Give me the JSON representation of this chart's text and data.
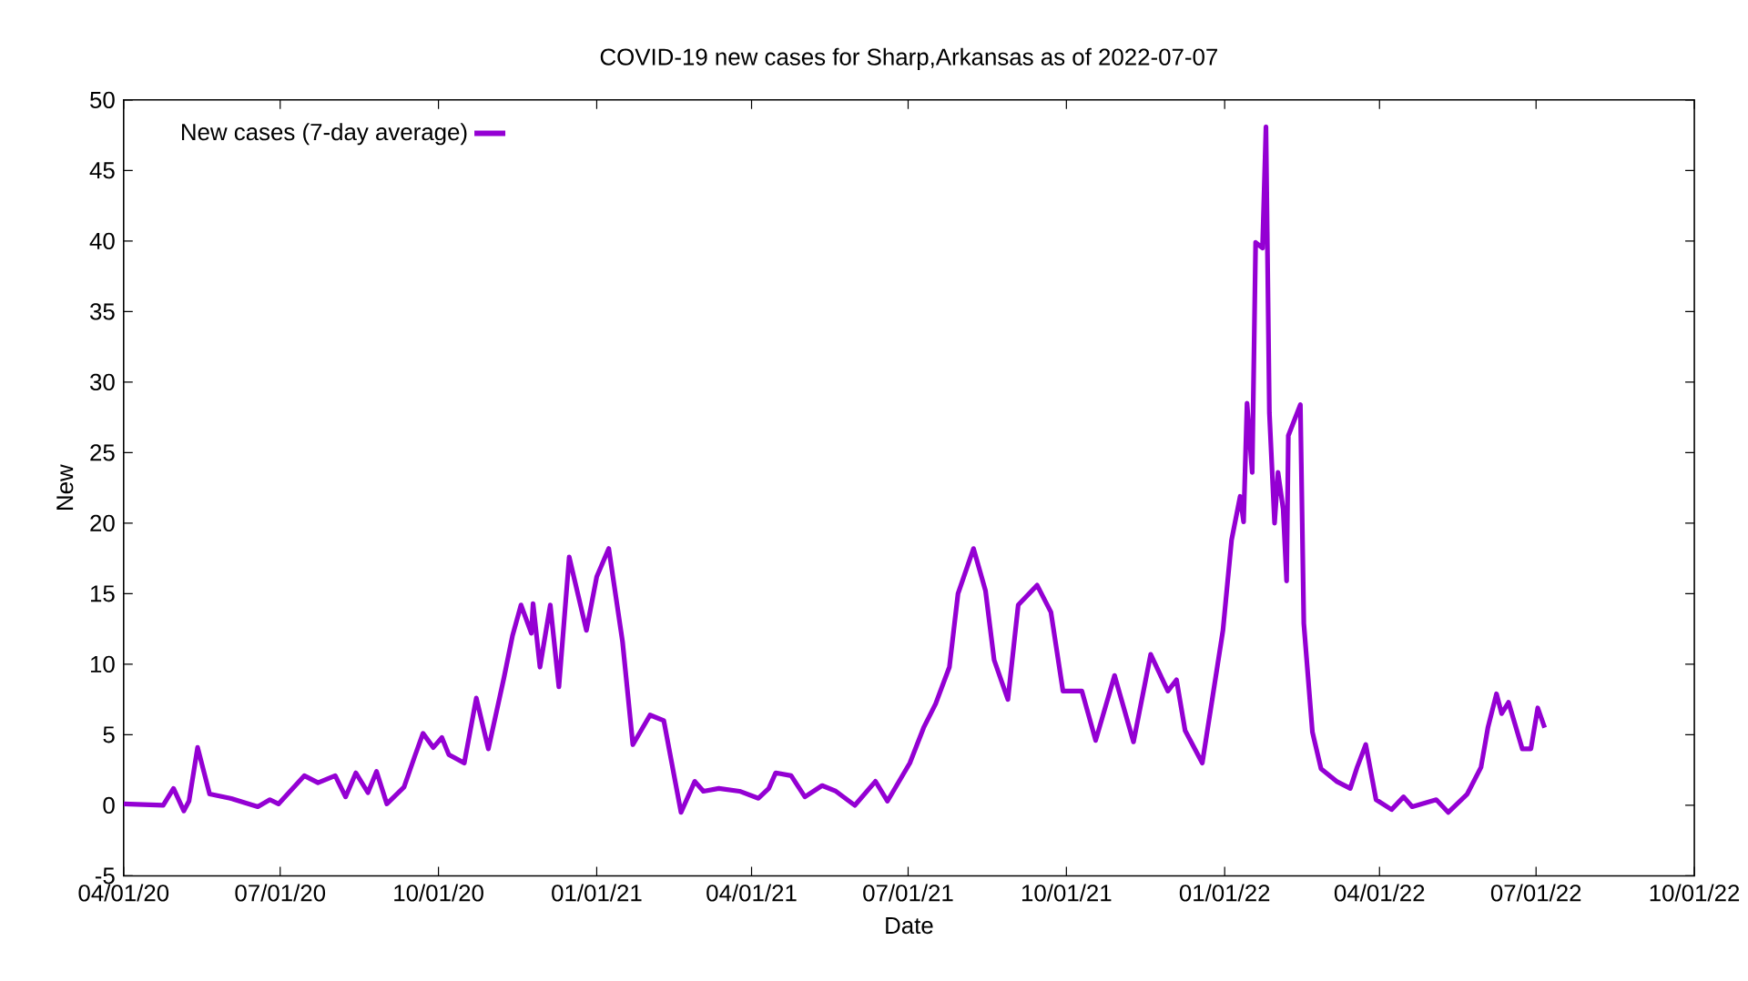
{
  "chart_data": {
    "type": "line",
    "title": "COVID-19 new cases for Sharp,Arkansas as of 2022-07-07",
    "xlabel": "Date",
    "ylabel": "New",
    "xlim": [
      "2020-04-01",
      "2022-10-01"
    ],
    "xticks": [
      {
        "value": "2020-04-01",
        "label": "04/01/20"
      },
      {
        "value": "2020-07-01",
        "label": "07/01/20"
      },
      {
        "value": "2020-10-01",
        "label": "10/01/20"
      },
      {
        "value": "2021-01-01",
        "label": "01/01/21"
      },
      {
        "value": "2021-04-01",
        "label": "04/01/21"
      },
      {
        "value": "2021-07-01",
        "label": "07/01/21"
      },
      {
        "value": "2021-10-01",
        "label": "10/01/21"
      },
      {
        "value": "2022-01-01",
        "label": "01/01/22"
      },
      {
        "value": "2022-04-01",
        "label": "04/01/22"
      },
      {
        "value": "2022-07-01",
        "label": "07/01/22"
      },
      {
        "value": "2022-10-01",
        "label": "10/01/22"
      }
    ],
    "ylim": [
      -5,
      50
    ],
    "yticks": [
      -5,
      0,
      5,
      10,
      15,
      20,
      25,
      30,
      35,
      40,
      45,
      50
    ],
    "grid": false,
    "legend": "top left",
    "marker": "none",
    "line_style": "solid",
    "series": [
      {
        "name": "New cases (7-day average)",
        "color": "#9400d3",
        "x": [
          "2020-04-01",
          "2020-04-24",
          "2020-04-30",
          "2020-05-06",
          "2020-05-09",
          "2020-05-14",
          "2020-05-21",
          "2020-06-02",
          "2020-06-18",
          "2020-06-25",
          "2020-06-30",
          "2020-07-15",
          "2020-07-23",
          "2020-08-02",
          "2020-08-08",
          "2020-08-14",
          "2020-08-21",
          "2020-08-26",
          "2020-09-01",
          "2020-09-11",
          "2020-09-17",
          "2020-09-22",
          "2020-09-28",
          "2020-10-03",
          "2020-10-07",
          "2020-10-16",
          "2020-10-23",
          "2020-10-30",
          "2020-11-08",
          "2020-11-13",
          "2020-11-18",
          "2020-11-24",
          "2020-11-25",
          "2020-11-29",
          "2020-12-05",
          "2020-12-10",
          "2020-12-16",
          "2020-12-26",
          "2021-01-01",
          "2021-01-08",
          "2021-01-16",
          "2021-01-22",
          "2021-02-01",
          "2021-02-09",
          "2021-02-19",
          "2021-02-27",
          "2021-03-04",
          "2021-03-13",
          "2021-03-25",
          "2021-04-05",
          "2021-04-11",
          "2021-04-15",
          "2021-04-24",
          "2021-05-02",
          "2021-05-12",
          "2021-05-20",
          "2021-05-31",
          "2021-06-12",
          "2021-06-19",
          "2021-07-02",
          "2021-07-10",
          "2021-07-17",
          "2021-07-25",
          "2021-07-30",
          "2021-08-08",
          "2021-08-15",
          "2021-08-20",
          "2021-08-28",
          "2021-09-03",
          "2021-09-14",
          "2021-09-22",
          "2021-09-29",
          "2021-10-10",
          "2021-10-18",
          "2021-10-29",
          "2021-11-09",
          "2021-11-19",
          "2021-11-29",
          "2021-12-04",
          "2021-12-09",
          "2021-12-19",
          "2021-12-25",
          "2021-12-31",
          "2022-01-05",
          "2022-01-10",
          "2022-01-12",
          "2022-01-14",
          "2022-01-17",
          "2022-01-19",
          "2022-01-23",
          "2022-01-25",
          "2022-01-27",
          "2022-01-30",
          "2022-02-01",
          "2022-02-04",
          "2022-02-06",
          "2022-02-07",
          "2022-02-14",
          "2022-02-16",
          "2022-02-21",
          "2022-02-26",
          "2022-03-07",
          "2022-03-15",
          "2022-03-19",
          "2022-03-24",
          "2022-03-30",
          "2022-04-08",
          "2022-04-15",
          "2022-04-20",
          "2022-05-04",
          "2022-05-11",
          "2022-05-22",
          "2022-05-30",
          "2022-06-03",
          "2022-06-08",
          "2022-06-11",
          "2022-06-15",
          "2022-06-23",
          "2022-06-28",
          "2022-07-02",
          "2022-07-06"
        ],
        "values": [
          0.1,
          0,
          1.2,
          -0.4,
          0.3,
          4.1,
          0.8,
          0.5,
          -0.1,
          0.4,
          0.1,
          2.1,
          1.6,
          2.1,
          0.6,
          2.3,
          0.9,
          2.4,
          0.1,
          1.3,
          3.4,
          5.1,
          4.1,
          4.8,
          3.6,
          3.0,
          7.6,
          4.0,
          9.0,
          12.0,
          14.2,
          12.2,
          14.3,
          9.8,
          14.2,
          8.4,
          17.6,
          12.4,
          16.2,
          18.2,
          11.6,
          4.3,
          6.4,
          6.0,
          -0.5,
          1.7,
          1.0,
          1.2,
          1.0,
          0.5,
          1.2,
          2.3,
          2.1,
          0.6,
          1.4,
          1.0,
          0,
          1.7,
          0.3,
          3.0,
          5.5,
          7.2,
          9.8,
          15.0,
          18.2,
          15.2,
          10.3,
          7.5,
          14.2,
          15.6,
          13.7,
          8.1,
          8.1,
          4.6,
          9.2,
          4.5,
          10.7,
          8.1,
          8.9,
          5.3,
          3.0,
          7.7,
          12.4,
          18.8,
          21.9,
          20.1,
          28.5,
          23.6,
          39.9,
          39.5,
          48.1,
          27.8,
          20.0,
          23.6,
          21.0,
          15.9,
          26.2,
          28.4,
          12.9,
          5.2,
          2.6,
          1.7,
          1.2,
          2.7,
          4.3,
          0.4,
          -0.3,
          0.6,
          -0.1,
          0.4,
          -0.5,
          0.8,
          2.7,
          5.5,
          7.9,
          6.5,
          7.3,
          4.0,
          4.0,
          6.9,
          5.5
        ]
      }
    ]
  }
}
